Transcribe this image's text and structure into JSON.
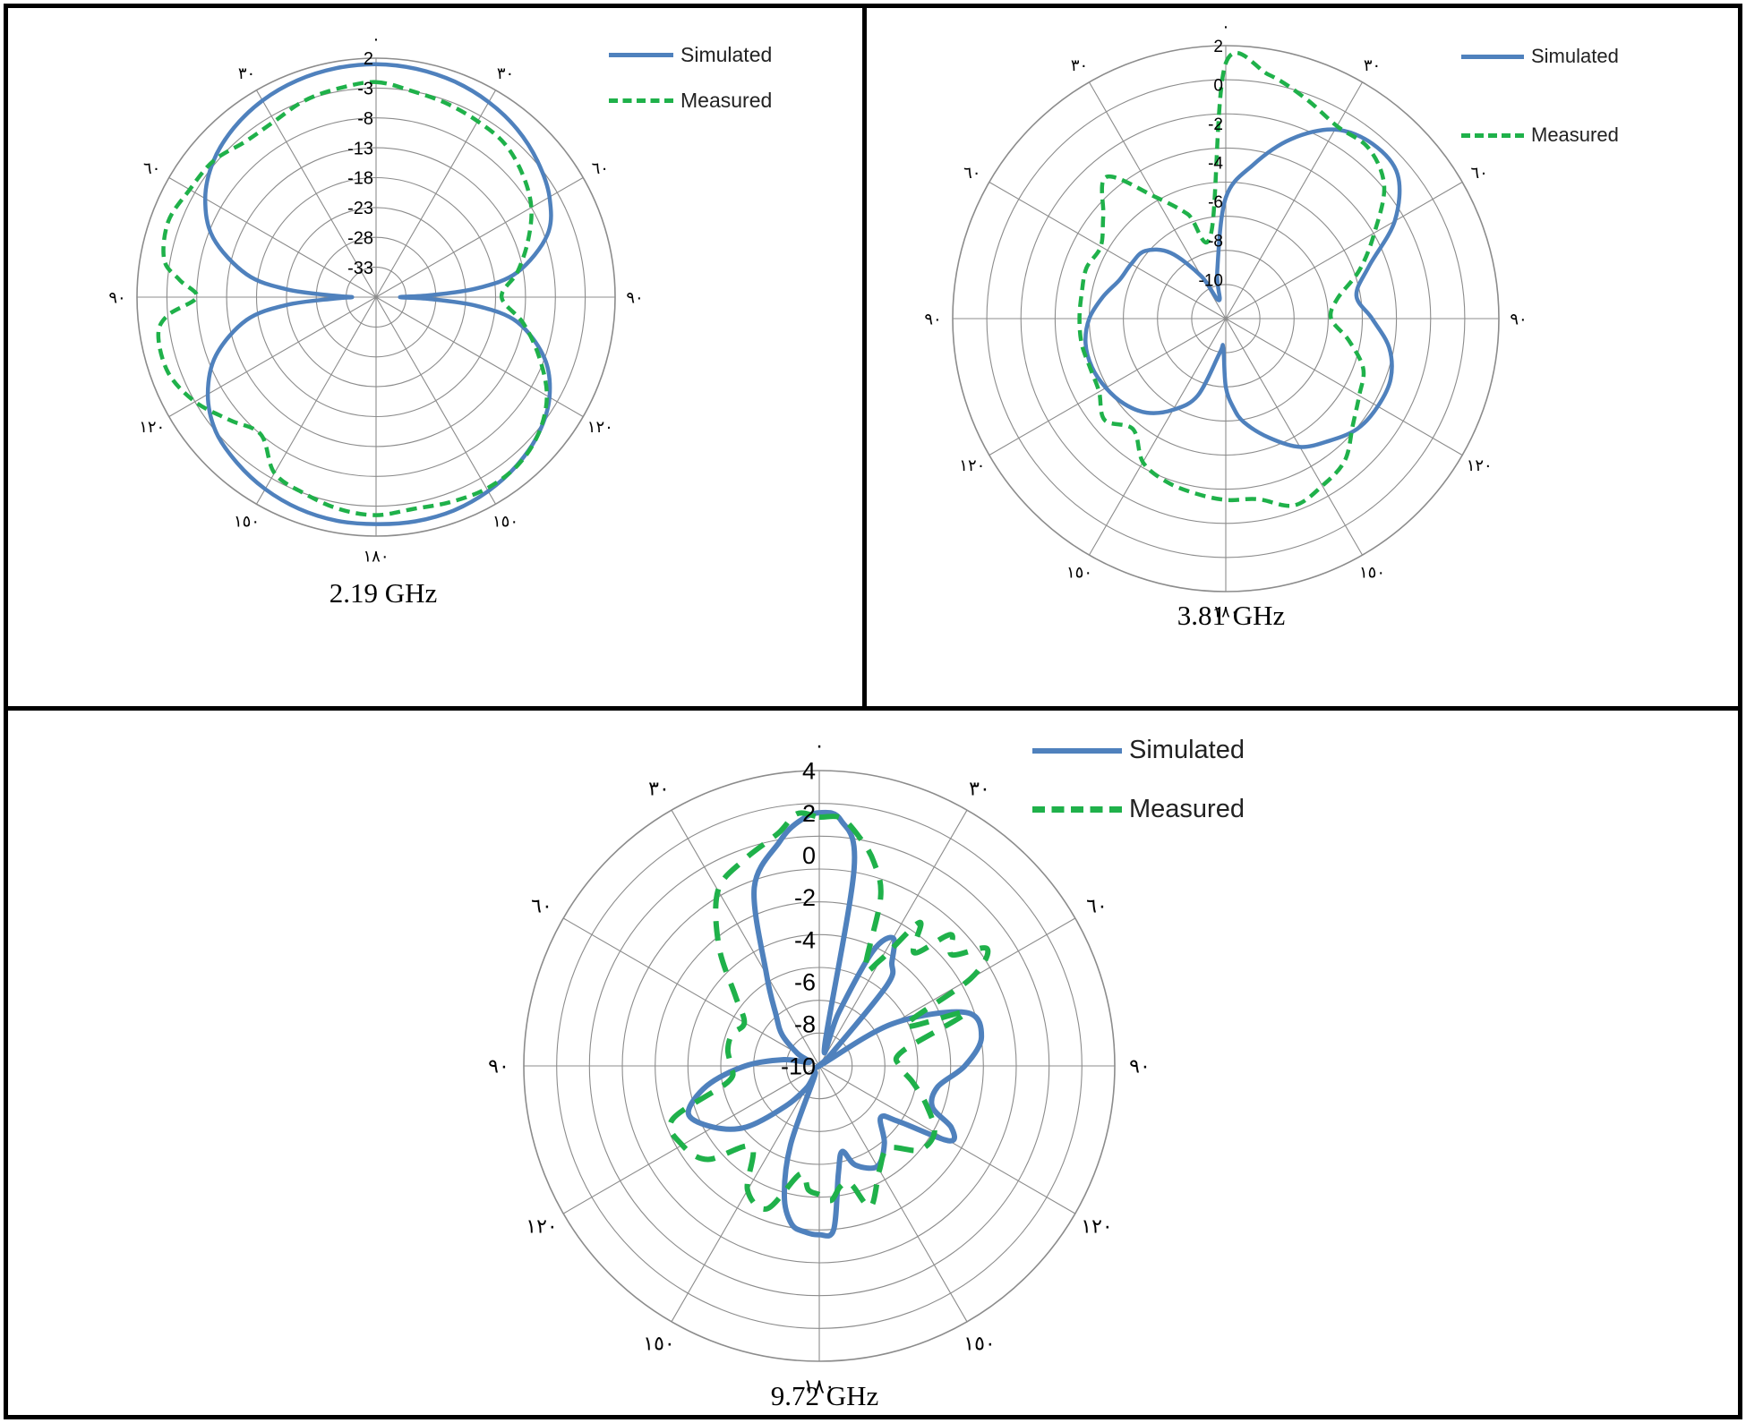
{
  "colors": {
    "simulated": "#4f81bd",
    "measured": "#1fb14a",
    "grid": "#8c8c8c",
    "text": "#000000"
  },
  "chart_data": [
    {
      "type": "line",
      "polar": true,
      "caption": "2.19 GHz",
      "angle_labels": [
        "٠",
        "٣٠",
        "٦٠",
        "٩٠",
        "١٢٠",
        "١٥٠",
        "١٨٠",
        "١٥٠",
        "١٢٠",
        "٩٠",
        "٦٠",
        "٣٠"
      ],
      "radial_ticks": [
        "2",
        "-3",
        "-8",
        "-13",
        "-18",
        "-23",
        "-28",
        "-33"
      ],
      "rlim": [
        -38,
        2
      ],
      "legend": {
        "placement": "top-right",
        "entries": [
          "Simulated",
          "Measured"
        ]
      },
      "series": [
        {
          "name": "Simulated",
          "theta": [
            0,
            10,
            20,
            30,
            40,
            50,
            60,
            70,
            80,
            85,
            88,
            90,
            92,
            95,
            100,
            110,
            120,
            130,
            140,
            150,
            160,
            170,
            180,
            190,
            200,
            210,
            220,
            230,
            240,
            250,
            260,
            265,
            268,
            270,
            272,
            275,
            280,
            290,
            300,
            310,
            320,
            330,
            340,
            350,
            360
          ],
          "r": [
            1,
            0.8,
            0.4,
            -0.3,
            -1.3,
            -2.7,
            -4.5,
            -7.5,
            -14,
            -21,
            -29,
            -34,
            -29,
            -21,
            -14,
            -8,
            -4.5,
            -2.5,
            -1.3,
            -0.5,
            0,
            0.1,
            0,
            0,
            -0.3,
            -0.9,
            -1.8,
            -3,
            -5.5,
            -9.5,
            -16,
            -23,
            -31,
            -34,
            -31,
            -23,
            -16,
            -9,
            -5,
            -2.5,
            -1,
            0,
            0.6,
            0.9,
            1
          ]
        },
        {
          "name": "Measured",
          "theta": [
            0,
            10,
            20,
            30,
            40,
            50,
            60,
            70,
            80,
            90,
            100,
            110,
            120,
            130,
            140,
            150,
            160,
            170,
            180,
            190,
            200,
            210,
            220,
            230,
            240,
            250,
            260,
            265,
            270,
            275,
            280,
            290,
            300,
            310,
            320,
            330,
            340,
            350,
            360
          ],
          "r": [
            -2,
            -3,
            -3.5,
            -4,
            -4.5,
            -6,
            -8,
            -11,
            -14,
            -17,
            -13,
            -9,
            -5,
            -2.5,
            -1.2,
            -1,
            -1.5,
            -2,
            -1.5,
            -2,
            -3,
            -4,
            -8,
            -6,
            -3,
            -1,
            -1,
            -3,
            -8,
            -5,
            -2,
            -1,
            -2,
            -2.5,
            -4,
            -4,
            -3,
            -2.5,
            -2
          ]
        }
      ]
    },
    {
      "type": "line",
      "polar": true,
      "caption": "3.81 GHz",
      "angle_labels": [
        "٠",
        "٣٠",
        "٦٠",
        "٩٠",
        "١٢٠",
        "١٥٠",
        "١٨٠",
        "١٥٠",
        "١٢٠",
        "٩٠",
        "٦٠",
        "٣٠"
      ],
      "radial_ticks": [
        "2",
        "0",
        "-2",
        "-4",
        "-6",
        "-8",
        "-10"
      ],
      "rlim": [
        -12,
        2
      ],
      "legend": {
        "placement": "top-right",
        "entries": [
          "Simulated",
          "Measured"
        ]
      },
      "series": [
        {
          "name": "Simulated",
          "theta": [
            0,
            10,
            20,
            30,
            40,
            50,
            60,
            70,
            80,
            90,
            100,
            110,
            120,
            130,
            140,
            150,
            160,
            170,
            175,
            180,
            185,
            190,
            200,
            210,
            220,
            230,
            240,
            250,
            260,
            270,
            280,
            290,
            300,
            310,
            320,
            330,
            340,
            350,
            360
          ],
          "r": [
            -5.8,
            -4,
            -2.2,
            -0.8,
            -0.3,
            -0.5,
            -2,
            -4.2,
            -5.2,
            -4.5,
            -3.5,
            -3,
            -3,
            -3.2,
            -3.8,
            -4.4,
            -5.5,
            -6.6,
            -7.4,
            -8.5,
            -10.5,
            -10.2,
            -7.8,
            -6.6,
            -5.7,
            -5.2,
            -4.9,
            -4.7,
            -4.7,
            -5,
            -5.6,
            -6.2,
            -6.4,
            -6.6,
            -7.6,
            -9.5,
            -11,
            -9.5,
            -5.8
          ]
        },
        {
          "name": "Measured",
          "theta": [
            0,
            10,
            20,
            30,
            40,
            50,
            60,
            70,
            80,
            90,
            100,
            110,
            120,
            130,
            140,
            150,
            160,
            170,
            180,
            190,
            200,
            210,
            220,
            230,
            240,
            250,
            260,
            270,
            280,
            290,
            300,
            310,
            320,
            330,
            340,
            350,
            360
          ],
          "r": [
            1.1,
            0.7,
            0,
            -0.6,
            -0.6,
            -1.4,
            -3.2,
            -4.7,
            -6.2,
            -6.6,
            -5.6,
            -4.5,
            -4.1,
            -3.5,
            -2.5,
            -2.1,
            -1.8,
            -2.6,
            -2.7,
            -2.9,
            -3.1,
            -3.5,
            -4.6,
            -3.9,
            -4.5,
            -4.6,
            -4.5,
            -4.5,
            -4.5,
            -4.4,
            -4.6,
            -3.8,
            -2.5,
            -4.8,
            -6.3,
            -7.6,
            1.1
          ]
        }
      ]
    },
    {
      "type": "line",
      "polar": true,
      "caption": "9.72 GHz",
      "angle_labels": [
        "٠",
        "٣٠",
        "٦٠",
        "٩٠",
        "١٢٠",
        "١٥٠",
        "١٨٠",
        "١٥٠",
        "١٢٠",
        "٩٠",
        "٦٠",
        "٣٠"
      ],
      "radial_ticks": [
        "4",
        "2",
        "0",
        "-2",
        "-4",
        "-6",
        "-8",
        "-10"
      ],
      "rlim": [
        -10,
        4
      ],
      "legend": {
        "placement": "top-right",
        "entries": [
          "Simulated",
          "Measured"
        ]
      },
      "series": [
        {
          "name": "Simulated",
          "theta": [
            0,
            5,
            10,
            15,
            20,
            25,
            30,
            35,
            40,
            45,
            50,
            60,
            70,
            80,
            90,
            100,
            110,
            115,
            120,
            125,
            130,
            140,
            150,
            160,
            165,
            170,
            175,
            180,
            185,
            190,
            195,
            200,
            205,
            210,
            220,
            230,
            240,
            250,
            260,
            270,
            280,
            290,
            300,
            310,
            320,
            330,
            340,
            350,
            355,
            360
          ],
          "r": [
            2,
            1.7,
            -0.5,
            -9,
            -7.3,
            -4,
            -3,
            -4,
            -5,
            -9.2,
            -10,
            -6,
            -2.6,
            -2.2,
            -3.1,
            -4.3,
            -4.3,
            -3.1,
            -2.9,
            -5.4,
            -6.2,
            -5.2,
            -4.5,
            -5,
            -5.8,
            -4.8,
            -2.2,
            -2,
            -2.1,
            -2.4,
            -3.6,
            -6,
            -9.5,
            -8.8,
            -7.5,
            -5.5,
            -4.2,
            -3.4,
            -4.6,
            -6.5,
            -8.3,
            -9.5,
            -8.8,
            -7.7,
            -6.8,
            -5,
            -1,
            0.8,
            1.6,
            2
          ]
        },
        {
          "name": "Measured",
          "theta": [
            0,
            5,
            10,
            15,
            20,
            25,
            30,
            35,
            40,
            45,
            50,
            55,
            60,
            65,
            70,
            80,
            90,
            100,
            110,
            120,
            130,
            140,
            150,
            160,
            165,
            170,
            175,
            180,
            185,
            190,
            200,
            210,
            220,
            230,
            240,
            250,
            260,
            270,
            280,
            290,
            300,
            310,
            320,
            330,
            340,
            350,
            355,
            360
          ],
          "r": [
            1.8,
            1.8,
            1,
            0,
            -1.5,
            -4.8,
            -4.2,
            -1.7,
            -3,
            -1.2,
            -1.8,
            -0.3,
            -1.7,
            -5.5,
            -2.6,
            -6,
            -6.2,
            -5.5,
            -4.6,
            -3.7,
            -3.8,
            -4.9,
            -4.3,
            -2.9,
            -4.2,
            -4.2,
            -3.6,
            -3.9,
            -4.1,
            -4.8,
            -2.8,
            -3.2,
            -5,
            -3.1,
            -2.5,
            -2.6,
            -5.6,
            -5.8,
            -5.6,
            -5.6,
            -5.9,
            -4.8,
            -2.6,
            -0.4,
            0.4,
            1.2,
            2,
            1.8
          ]
        }
      ]
    }
  ]
}
